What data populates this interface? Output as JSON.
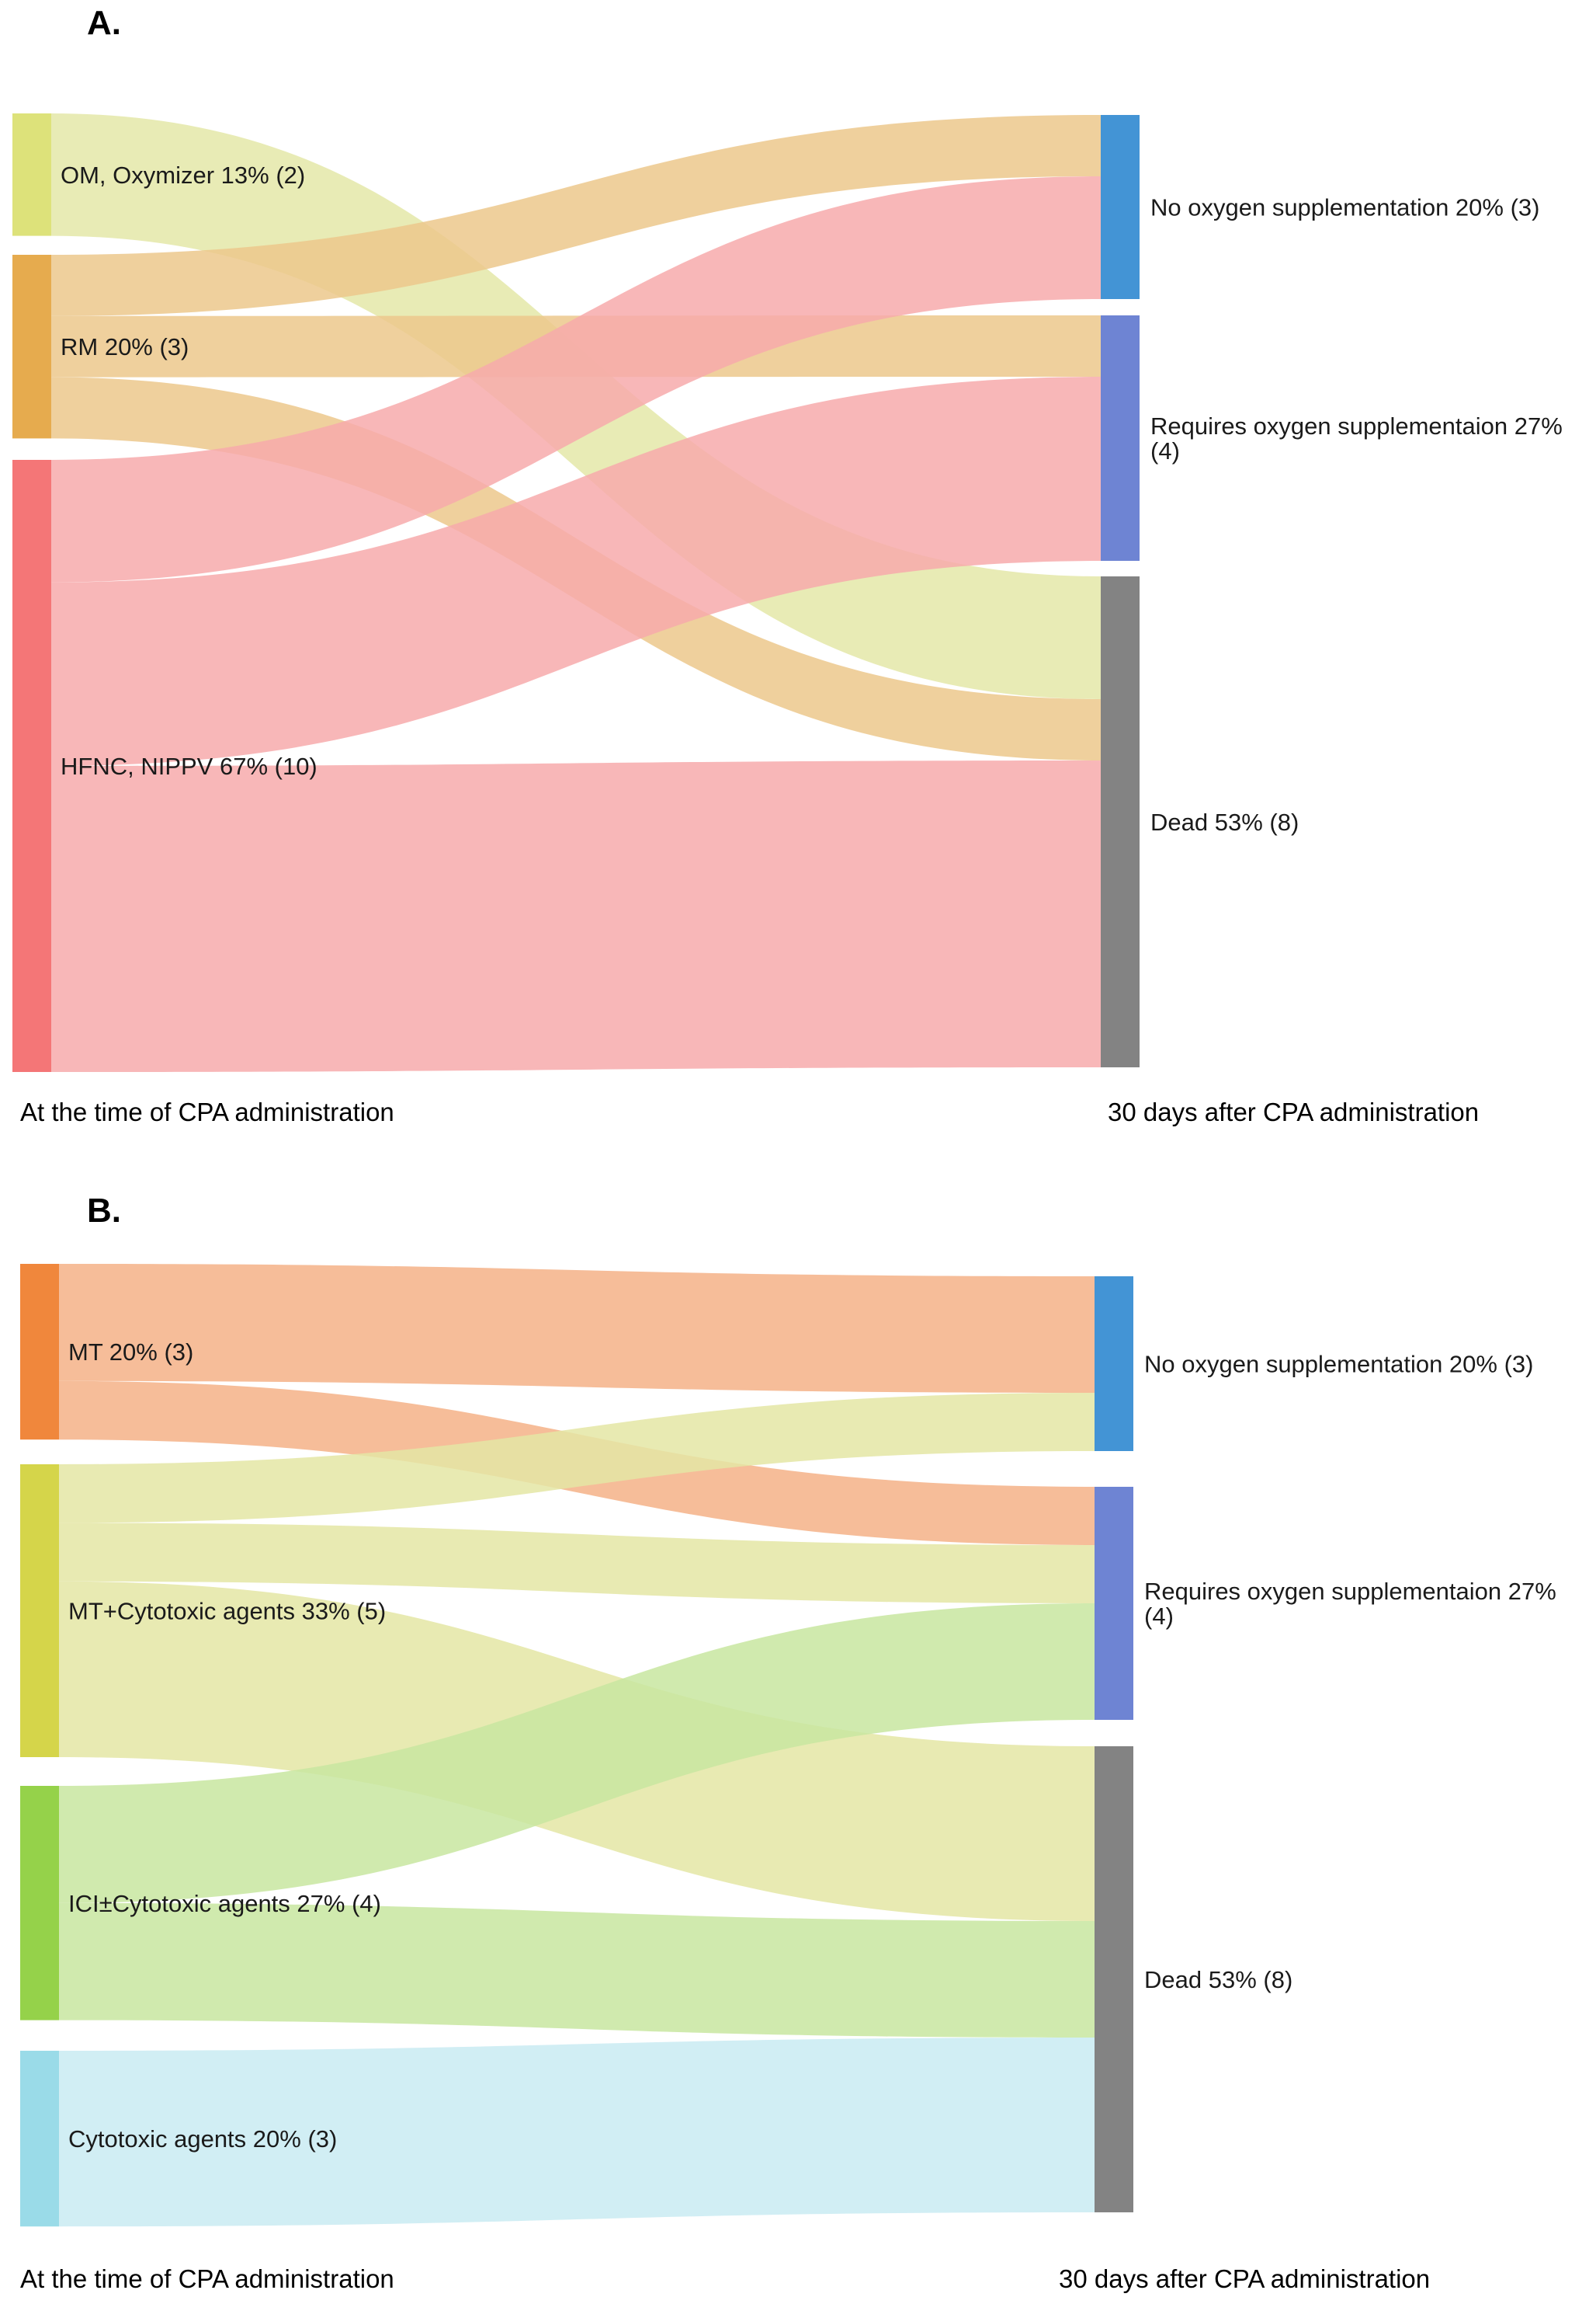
{
  "chart_data": [
    {
      "type": "sankey",
      "panel": "A.",
      "left_axis_label": "At the time of CPA administration",
      "right_axis_label": "30 days after CPA administration",
      "sources": [
        {
          "id": "om",
          "label": "OM, Oxymizer 13% (2)",
          "value": 2,
          "color": "#dde27a"
        },
        {
          "id": "rm",
          "label": "RM 20% (3)",
          "value": 3,
          "color": "#e6ab4e"
        },
        {
          "id": "hfnc",
          "label": "HFNC, NIPPV 67% (10)",
          "value": 10,
          "color": "#f47677"
        }
      ],
      "targets": [
        {
          "id": "noo2",
          "label": "No oxygen supplementation 20% (3)",
          "value": 3,
          "color": "#4394d5"
        },
        {
          "id": "req",
          "label": "Requires oxygen supplementaion 27% (4)",
          "label_lines": [
            "Requires oxygen supplementaion 27%",
            "(4)"
          ],
          "value": 4,
          "color": "#6e84d3"
        },
        {
          "id": "dead",
          "label": "Dead 53% (8)",
          "value": 8,
          "color": "#838383"
        }
      ],
      "links": [
        {
          "source": "om",
          "target": "dead",
          "value": 2,
          "color": "#e4e8a8"
        },
        {
          "source": "rm",
          "target": "noo2",
          "value": 1,
          "color": "#ecc88c"
        },
        {
          "source": "rm",
          "target": "req",
          "value": 1,
          "color": "#ecc88c"
        },
        {
          "source": "rm",
          "target": "dead",
          "value": 1,
          "color": "#ecc88c"
        },
        {
          "source": "hfnc",
          "target": "noo2",
          "value": 2,
          "color": "#f7aaac"
        },
        {
          "source": "hfnc",
          "target": "req",
          "value": 3,
          "color": "#f7aaac"
        },
        {
          "source": "hfnc",
          "target": "dead",
          "value": 5,
          "color": "#f7aaac"
        }
      ]
    },
    {
      "type": "sankey",
      "panel": "B.",
      "left_axis_label": "At the time of CPA administration",
      "right_axis_label": "30 days after CPA administration",
      "sources": [
        {
          "id": "mt",
          "label": "MT 20% (3)",
          "value": 3,
          "color": "#f0873c"
        },
        {
          "id": "mtc",
          "label": "MT+Cytotoxic agents 33% (5)",
          "value": 5,
          "color": "#d5d54a"
        },
        {
          "id": "ici",
          "label": "ICI±Cytotoxic agents 27% (4)",
          "value": 4,
          "color": "#95d24a"
        },
        {
          "id": "cyt",
          "label": "Cytotoxic agents 20% (3)",
          "value": 3,
          "color": "#9adbe8"
        }
      ],
      "targets": [
        {
          "id": "noo2",
          "label": "No oxygen supplementation 20% (3)",
          "value": 3,
          "color": "#4394d5"
        },
        {
          "id": "req",
          "label": "Requires oxygen supplementaion 27% (4)",
          "label_lines": [
            "Requires oxygen supplementaion 27%",
            "(4)"
          ],
          "value": 4,
          "color": "#6e84d3"
        },
        {
          "id": "dead",
          "label": "Dead 53% (8)",
          "value": 8,
          "color": "#838383"
        }
      ],
      "links": [
        {
          "source": "mt",
          "target": "noo2",
          "value": 2,
          "color": "#f4b287"
        },
        {
          "source": "mt",
          "target": "req",
          "value": 1,
          "color": "#f4b287"
        },
        {
          "source": "mtc",
          "target": "noo2",
          "value": 1,
          "color": "#e4e6a4"
        },
        {
          "source": "mtc",
          "target": "req",
          "value": 1,
          "color": "#e4e6a4"
        },
        {
          "source": "mtc",
          "target": "dead",
          "value": 3,
          "color": "#e4e6a4"
        },
        {
          "source": "ici",
          "target": "req",
          "value": 2,
          "color": "#c8e6a0"
        },
        {
          "source": "ici",
          "target": "dead",
          "value": 2,
          "color": "#c8e6a0"
        },
        {
          "source": "cyt",
          "target": "dead",
          "value": 3,
          "color": "#c9ebf2"
        }
      ]
    }
  ]
}
